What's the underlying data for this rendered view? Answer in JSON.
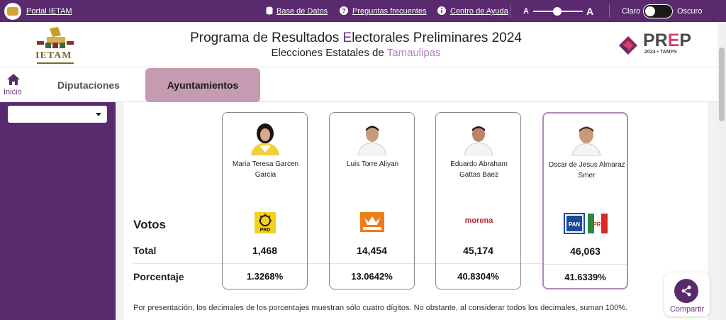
{
  "topbar": {
    "portal": "Portal IETAM",
    "db": "Base de Datos",
    "faq": "Preguntas frecuentes",
    "help": "Centro de Ayuda",
    "font_small": "A",
    "font_big": "A",
    "light": "Claro",
    "dark": "Oscuro"
  },
  "header": {
    "title_pre": "Programa de Resultados ",
    "title_accent": "E",
    "title_post": "lectorales Preliminares 2024",
    "subtitle_pre": "Elecciones Estatales de ",
    "subtitle_accent": "Tamaulipas",
    "ietam_logo_text": "IETAM",
    "prep_pre": "PR",
    "prep_e": "E",
    "prep_post": "P",
    "prep_sub": "2024 • TAMPS"
  },
  "nav": {
    "home": "Inicio",
    "tab_diputaciones": "Diputaciones",
    "tab_ayuntamientos": "Ayuntamientos"
  },
  "rows": {
    "votos": "Votos",
    "total": "Total",
    "porcentaje": "Porcentaje"
  },
  "candidates": [
    {
      "name": "Maria Teresa Garcen Garcia",
      "party_icon": "prd-logo",
      "total": "1,468",
      "pct": "1.3268%"
    },
    {
      "name": "Luis Torre Aliyan",
      "party_icon": "movimiento-ciudadano-logo",
      "total": "14,454",
      "pct": "13.0642%"
    },
    {
      "name": "Eduardo Abraham Gattas Baez",
      "party_icon": "morena-logo",
      "party_text": "morena",
      "total": "45,174",
      "pct": "40.8304%"
    },
    {
      "name": "Oscar de Jesus Almaraz Smer",
      "party_icon": "pan-pri-logo",
      "total": "46,063",
      "pct": "41.6339%"
    }
  ],
  "footnote": "Por presentación, los decimales de los porcentajes muestran sólo cuatro dígitos. No obstante, al considerar todos los decimales, suman 100%.",
  "share": "Compartir",
  "colors": {
    "purple": "#5a2a6e",
    "tab_active": "#c49bb0",
    "highlight": "#b08abb"
  }
}
